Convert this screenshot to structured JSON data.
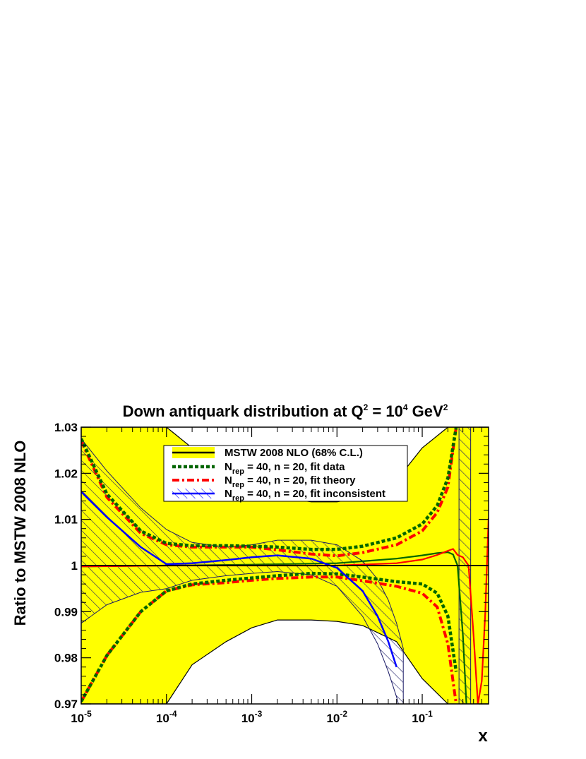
{
  "chart_data": {
    "type": "line",
    "title": "Down antiquark distribution at Q",
    "title_sup": "2",
    "title_mid": " = 10",
    "title_sup2": "4",
    "title_end": " GeV",
    "title_sup3": "2",
    "xlabel": "x",
    "ylabel": "Ratio to MSTW 2008 NLO",
    "x_scale": "log",
    "xlim": [
      1e-05,
      0.6
    ],
    "ylim": [
      0.97,
      1.03
    ],
    "x_ticks": [
      {
        "base": "10",
        "exp": "-5"
      },
      {
        "base": "10",
        "exp": "-4"
      },
      {
        "base": "10",
        "exp": "-3"
      },
      {
        "base": "10",
        "exp": "-2"
      },
      {
        "base": "10",
        "exp": "-1"
      }
    ],
    "y_ticks": [
      "0.97",
      "0.98",
      "0.99",
      "1",
      "1.01",
      "1.02",
      "1.03"
    ],
    "legend_position": "top-center",
    "legend": [
      {
        "pre": "MSTW 2008 NLO (68% C.L.)",
        "sub": "",
        "post": ""
      },
      {
        "pre": "N",
        "sub": "rep",
        "post": " = 40, n = 20, fit data"
      },
      {
        "pre": "N",
        "sub": "rep",
        "post": " = 40, n = 20, fit theory"
      },
      {
        "pre": "N",
        "sub": "rep",
        "post": " = 40, n = 20, fit inconsistent"
      }
    ],
    "colors": {
      "mstw_band": "#ffff00",
      "fit_data": "#006600",
      "fit_theory": "#ff0000",
      "fit_inconsistent": "#0000ff",
      "hatch": "#1a1a66"
    },
    "series": [
      {
        "name": "MSTW 2008 NLO (68% C.L.)",
        "kind": "band",
        "x": [
          1e-05,
          2e-05,
          5e-05,
          0.0001,
          0.0002,
          0.0005,
          0.001,
          0.002,
          0.005,
          0.01,
          0.02,
          0.05,
          0.1,
          0.2,
          0.3,
          0.5,
          0.6
        ],
        "upper": [
          1.03,
          1.03,
          1.03,
          1.03,
          1.0255,
          1.0186,
          1.0163,
          1.0149,
          1.0138,
          1.0138,
          1.0148,
          1.0185,
          1.0255,
          1.03,
          1.03,
          1.03,
          1.03
        ],
        "lower": [
          0.97,
          0.97,
          0.97,
          0.97,
          0.9785,
          0.9835,
          0.9865,
          0.9882,
          0.9882,
          0.9879,
          0.987,
          0.9835,
          0.9755,
          0.97,
          0.97,
          0.97,
          0.97
        ]
      },
      {
        "name": "N_rep = 40, n = 20, fit data",
        "kind": "band_edges",
        "x": [
          1e-05,
          2e-05,
          5e-05,
          0.0001,
          0.0002,
          0.0005,
          0.001,
          0.002,
          0.005,
          0.01,
          0.02,
          0.05,
          0.1,
          0.15,
          0.2,
          0.25
        ],
        "upper": [
          1.0275,
          1.0155,
          1.0075,
          1.0048,
          1.0043,
          1.0043,
          1.0042,
          1.004,
          1.0035,
          1.0035,
          1.0042,
          1.006,
          1.009,
          1.013,
          1.019,
          1.03
        ],
        "lower": [
          0.9705,
          0.9805,
          0.99,
          0.9945,
          0.996,
          0.9968,
          0.9973,
          0.9978,
          0.9983,
          0.9982,
          0.9975,
          0.9965,
          0.996,
          0.994,
          0.989,
          0.977
        ],
        "central_x": [
          1e-05,
          0.0001,
          0.001,
          0.01,
          0.05,
          0.1,
          0.15,
          0.2,
          0.23,
          0.26,
          0.3,
          0.33
        ],
        "central_y": [
          0.9998,
          1.0,
          1.0002,
          1.0005,
          1.0015,
          1.0022,
          1.0027,
          1.0029,
          1.0024,
          1.0,
          0.985,
          0.97
        ]
      },
      {
        "name": "N_rep = 40, n = 20, fit theory",
        "kind": "band_edges",
        "x": [
          1e-05,
          2e-05,
          5e-05,
          0.0001,
          0.0002,
          0.0005,
          0.001,
          0.002,
          0.005,
          0.01,
          0.02,
          0.05,
          0.1,
          0.15,
          0.2,
          0.25
        ],
        "upper": [
          1.027,
          1.0148,
          1.007,
          1.0045,
          1.004,
          1.004,
          1.004,
          1.0034,
          1.0025,
          1.0021,
          1.0028,
          1.0045,
          1.0075,
          1.0115,
          1.017,
          1.03
        ],
        "lower": [
          0.9705,
          0.9805,
          0.99,
          0.9945,
          0.9958,
          0.9963,
          0.9968,
          0.9972,
          0.9975,
          0.9975,
          0.9967,
          0.9955,
          0.994,
          0.991,
          0.983,
          0.97
        ],
        "central_x": [
          1e-05,
          0.0001,
          0.001,
          0.01,
          0.05,
          0.1,
          0.15,
          0.2,
          0.23,
          0.26,
          0.3,
          0.35,
          0.4,
          0.45,
          0.5,
          0.55,
          0.6
        ],
        "central_y": [
          0.9998,
          1.0,
          1.0,
          1.0,
          1.0005,
          1.0013,
          1.0023,
          1.0032,
          1.0036,
          1.0023,
          1.0018,
          1.0,
          0.985,
          0.97,
          0.975,
          0.99,
          1.0103
        ]
      },
      {
        "name": "N_rep = 40, n = 20, fit inconsistent",
        "kind": "hatched_band",
        "x": [
          1e-05,
          2e-05,
          5e-05,
          0.0001,
          0.0002,
          0.0005,
          0.001,
          0.002,
          0.005,
          0.01,
          0.02,
          0.03,
          0.04,
          0.05,
          0.06
        ],
        "upper": [
          1.0275,
          1.0205,
          1.0125,
          1.0078,
          1.005,
          1.004,
          1.0045,
          1.0055,
          1.0055,
          1.0045,
          1.001,
          0.997,
          0.9925,
          0.9875,
          0.982
        ],
        "lower": [
          0.9875,
          0.9915,
          0.9942,
          0.995,
          0.9968,
          0.9978,
          0.9983,
          0.9987,
          0.998,
          0.9955,
          0.989,
          0.983,
          0.977,
          0.9715,
          0.966
        ],
        "central_x": [
          1e-05,
          2e-05,
          5e-05,
          0.0001,
          0.0002,
          0.0005,
          0.001,
          0.002,
          0.005,
          0.01,
          0.02,
          0.03,
          0.04,
          0.05
        ],
        "central_y": [
          1.016,
          1.0105,
          1.004,
          1.0003,
          1.0005,
          1.0012,
          1.0018,
          1.0022,
          1.0015,
          0.9995,
          0.9945,
          0.989,
          0.9835,
          0.978
        ]
      },
      {
        "name": "high-x hatched band",
        "kind": "hatched_strip",
        "x_range": [
          0.27,
          0.37
        ]
      }
    ]
  }
}
